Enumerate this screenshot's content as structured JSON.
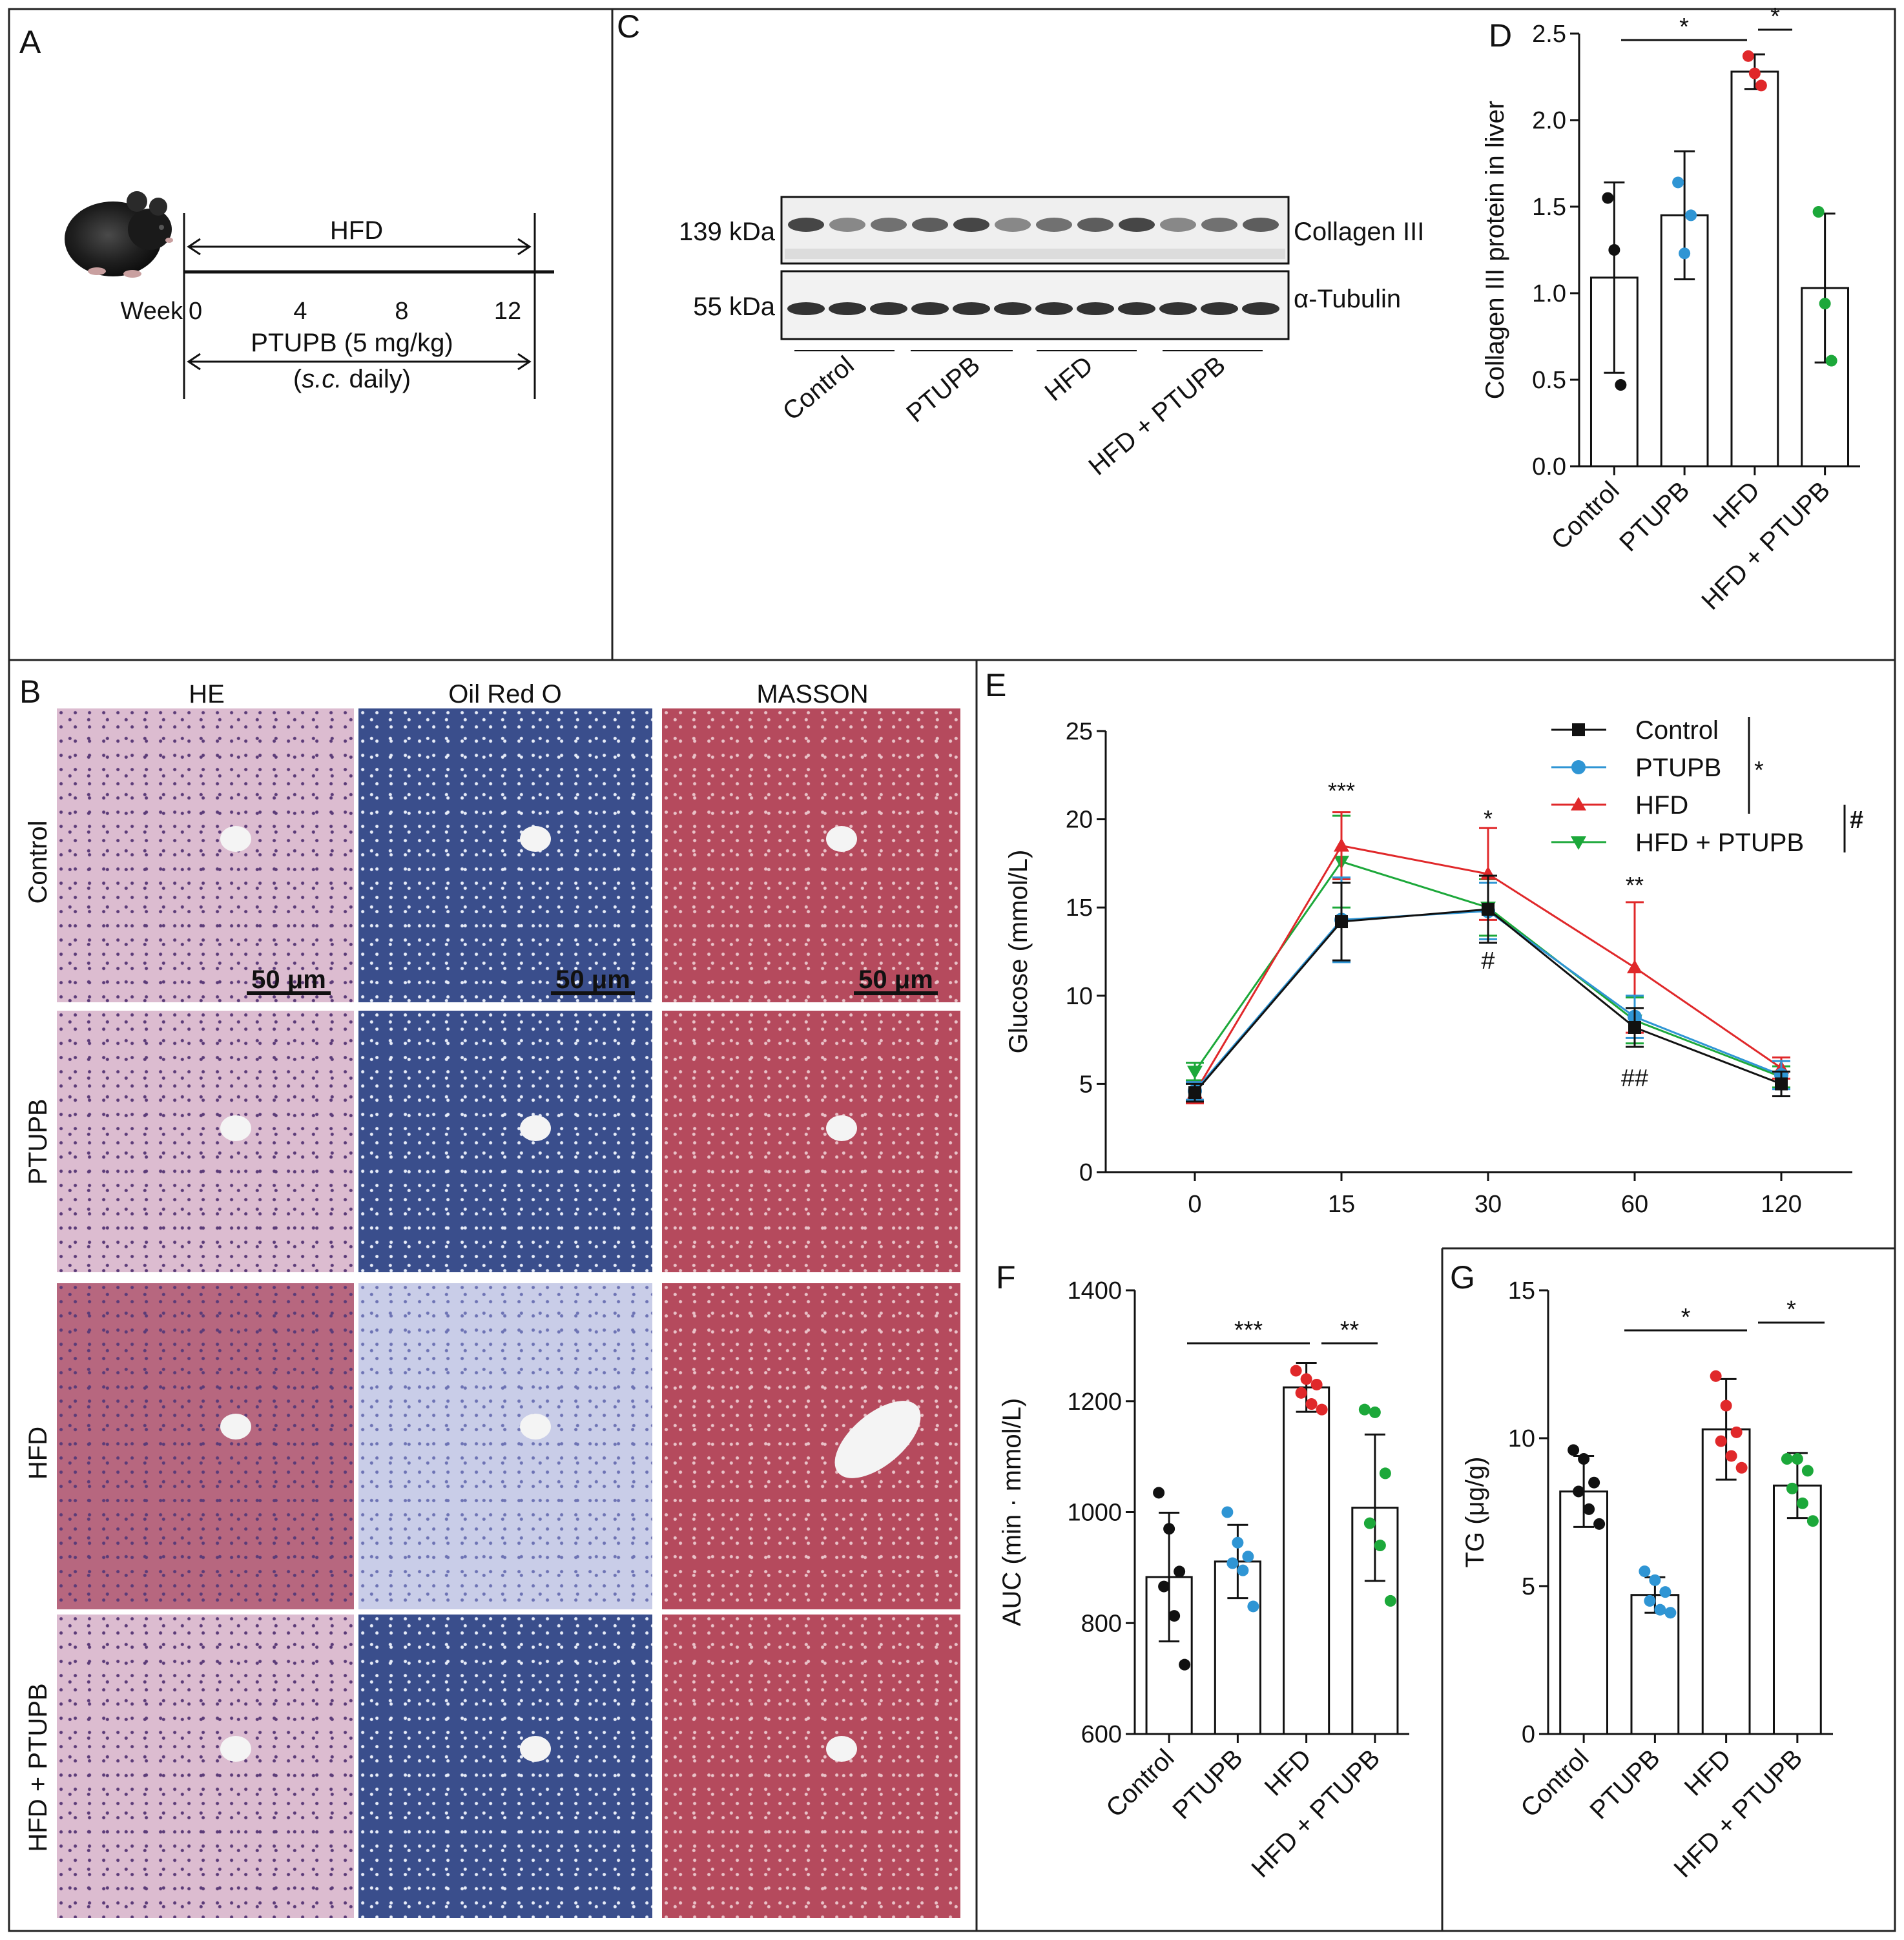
{
  "panels": {
    "A": {
      "letter": "A",
      "hfd_label": "HFD",
      "week_label": "Week",
      "weeks": [
        "0",
        "4",
        "8",
        "12"
      ],
      "treatment_line1": "PTUPB (5 mg/kg)",
      "treatment_route": "s.c.",
      "treatment_freq": " daily)",
      "mouse_icon": "mouse-photo"
    },
    "B": {
      "letter": "B",
      "columns": [
        "HE",
        "Oil Red O",
        "MASSON"
      ],
      "rows": [
        "Control",
        "PTUPB",
        "HFD",
        "HFD + PTUPB"
      ],
      "scale_bar": "50 μm",
      "colors": {
        "he": "#dcbcd0",
        "he_hfd": "#b7677f",
        "oil": "#3a4e8c",
        "oil_light": "#c9cde8",
        "masson": "#b54a5d"
      }
    },
    "C": {
      "letter": "C",
      "bands": [
        {
          "kda": "139 kDa",
          "protein": "Collagen III"
        },
        {
          "kda": "55 kDa",
          "protein": "α-Tubulin"
        }
      ],
      "lane_groups": [
        "Control",
        "PTUPB",
        "HFD",
        "HFD + PTUPB"
      ]
    },
    "D": {
      "letter": "D",
      "ylabel": "Collagen III protein in liver",
      "significance": [
        "*",
        "*"
      ]
    },
    "E": {
      "letter": "E",
      "ylabel": "Glucose (mmol/L)",
      "annotations": [
        "***",
        "*",
        "#",
        "**",
        "##"
      ],
      "legend_marks": [
        "*",
        "#"
      ]
    },
    "F": {
      "letter": "F",
      "ylabel": "AUC (min · mmol/L)",
      "significance": [
        "***",
        "**"
      ]
    },
    "G": {
      "letter": "G",
      "ylabel": "TG (μg/g)",
      "significance": [
        "*",
        "*"
      ]
    }
  },
  "chart_data": [
    {
      "id": "D",
      "type": "bar",
      "categories": [
        "Control",
        "PTUPB",
        "HFD",
        "HFD + PTUPB"
      ],
      "values": [
        1.09,
        1.45,
        2.28,
        1.03
      ],
      "errors": [
        0.55,
        0.37,
        0.1,
        0.43
      ],
      "points": [
        [
          1.55,
          1.25,
          0.47
        ],
        [
          1.64,
          1.23,
          1.45
        ],
        [
          2.37,
          2.27,
          2.2
        ],
        [
          1.47,
          0.94,
          0.61
        ]
      ],
      "point_colors": [
        "#111111",
        "#2f95d4",
        "#e0282a",
        "#1ca83a"
      ],
      "ylabel": "Collagen III protein in liver",
      "ylim": [
        0,
        2.5
      ],
      "yticks": [
        "0.0",
        "0.5",
        "1.0",
        "1.5",
        "2.0",
        "2.5"
      ]
    },
    {
      "id": "E",
      "type": "line",
      "x": [
        0,
        15,
        30,
        60,
        120
      ],
      "xticks": [
        "0",
        "15",
        "30",
        "60",
        "120"
      ],
      "series": [
        {
          "name": "Control",
          "color": "#111111",
          "marker": "square",
          "values": [
            4.5,
            14.2,
            14.9,
            8.2,
            5.0
          ],
          "errors": [
            0.5,
            2.2,
            1.9,
            1.1,
            0.7
          ]
        },
        {
          "name": "PTUPB",
          "color": "#2f95d4",
          "marker": "circle",
          "values": [
            4.6,
            14.3,
            14.8,
            8.8,
            5.5
          ],
          "errors": [
            0.5,
            2.4,
            1.6,
            1.2,
            0.8
          ]
        },
        {
          "name": "HFD",
          "color": "#e0282a",
          "marker": "triangle-up",
          "values": [
            4.5,
            18.5,
            16.9,
            11.6,
            5.9
          ],
          "errors": [
            0.6,
            1.9,
            2.6,
            3.7,
            0.6
          ]
        },
        {
          "name": "HFD + PTUPB",
          "color": "#1ca83a",
          "marker": "triangle-down",
          "values": [
            5.7,
            17.6,
            15.0,
            8.6,
            5.4
          ],
          "errors": [
            0.5,
            2.6,
            1.6,
            1.3,
            0.6
          ]
        }
      ],
      "ylabel": "Glucose (mmol/L)",
      "ylim": [
        0,
        25
      ],
      "yticks": [
        "0",
        "5",
        "10",
        "15",
        "20",
        "25"
      ],
      "legend": "top-right"
    },
    {
      "id": "F",
      "type": "bar",
      "categories": [
        "Control",
        "PTUPB",
        "HFD",
        "HFD + PTUPB"
      ],
      "values": [
        883,
        911,
        1225,
        1008
      ],
      "errors": [
        116,
        66,
        44,
        132
      ],
      "points": [
        [
          1035,
          970,
          893,
          866,
          813,
          725
        ],
        [
          1000,
          945,
          920,
          908,
          895,
          830
        ],
        [
          1255,
          1240,
          1230,
          1215,
          1195,
          1185
        ],
        [
          1185,
          1180,
          1070,
          980,
          940,
          840
        ]
      ],
      "point_colors": [
        "#111111",
        "#2f95d4",
        "#e0282a",
        "#1ca83a"
      ],
      "ylabel": "AUC (min · mmol/L)",
      "ylim": [
        600,
        1400
      ],
      "yticks": [
        "600",
        "800",
        "1000",
        "1200",
        "1400"
      ]
    },
    {
      "id": "G",
      "type": "bar",
      "categories": [
        "Control",
        "PTUPB",
        "HFD",
        "HFD + PTUPB"
      ],
      "values": [
        8.2,
        4.7,
        10.3,
        8.4
      ],
      "errors": [
        1.2,
        0.6,
        1.7,
        1.1
      ],
      "points": [
        [
          9.6,
          9.3,
          8.5,
          8.2,
          7.6,
          7.1
        ],
        [
          5.5,
          5.2,
          4.8,
          4.5,
          4.2,
          4.1
        ],
        [
          12.1,
          11.1,
          10.2,
          9.9,
          9.4,
          9.0
        ],
        [
          9.3,
          9.3,
          8.9,
          8.3,
          7.8,
          7.2
        ]
      ],
      "point_colors": [
        "#111111",
        "#2f95d4",
        "#e0282a",
        "#1ca83a"
      ],
      "ylabel": "TG (μg/g)",
      "ylim": [
        0,
        15
      ],
      "yticks": [
        "0",
        "5",
        "10",
        "15"
      ]
    }
  ]
}
